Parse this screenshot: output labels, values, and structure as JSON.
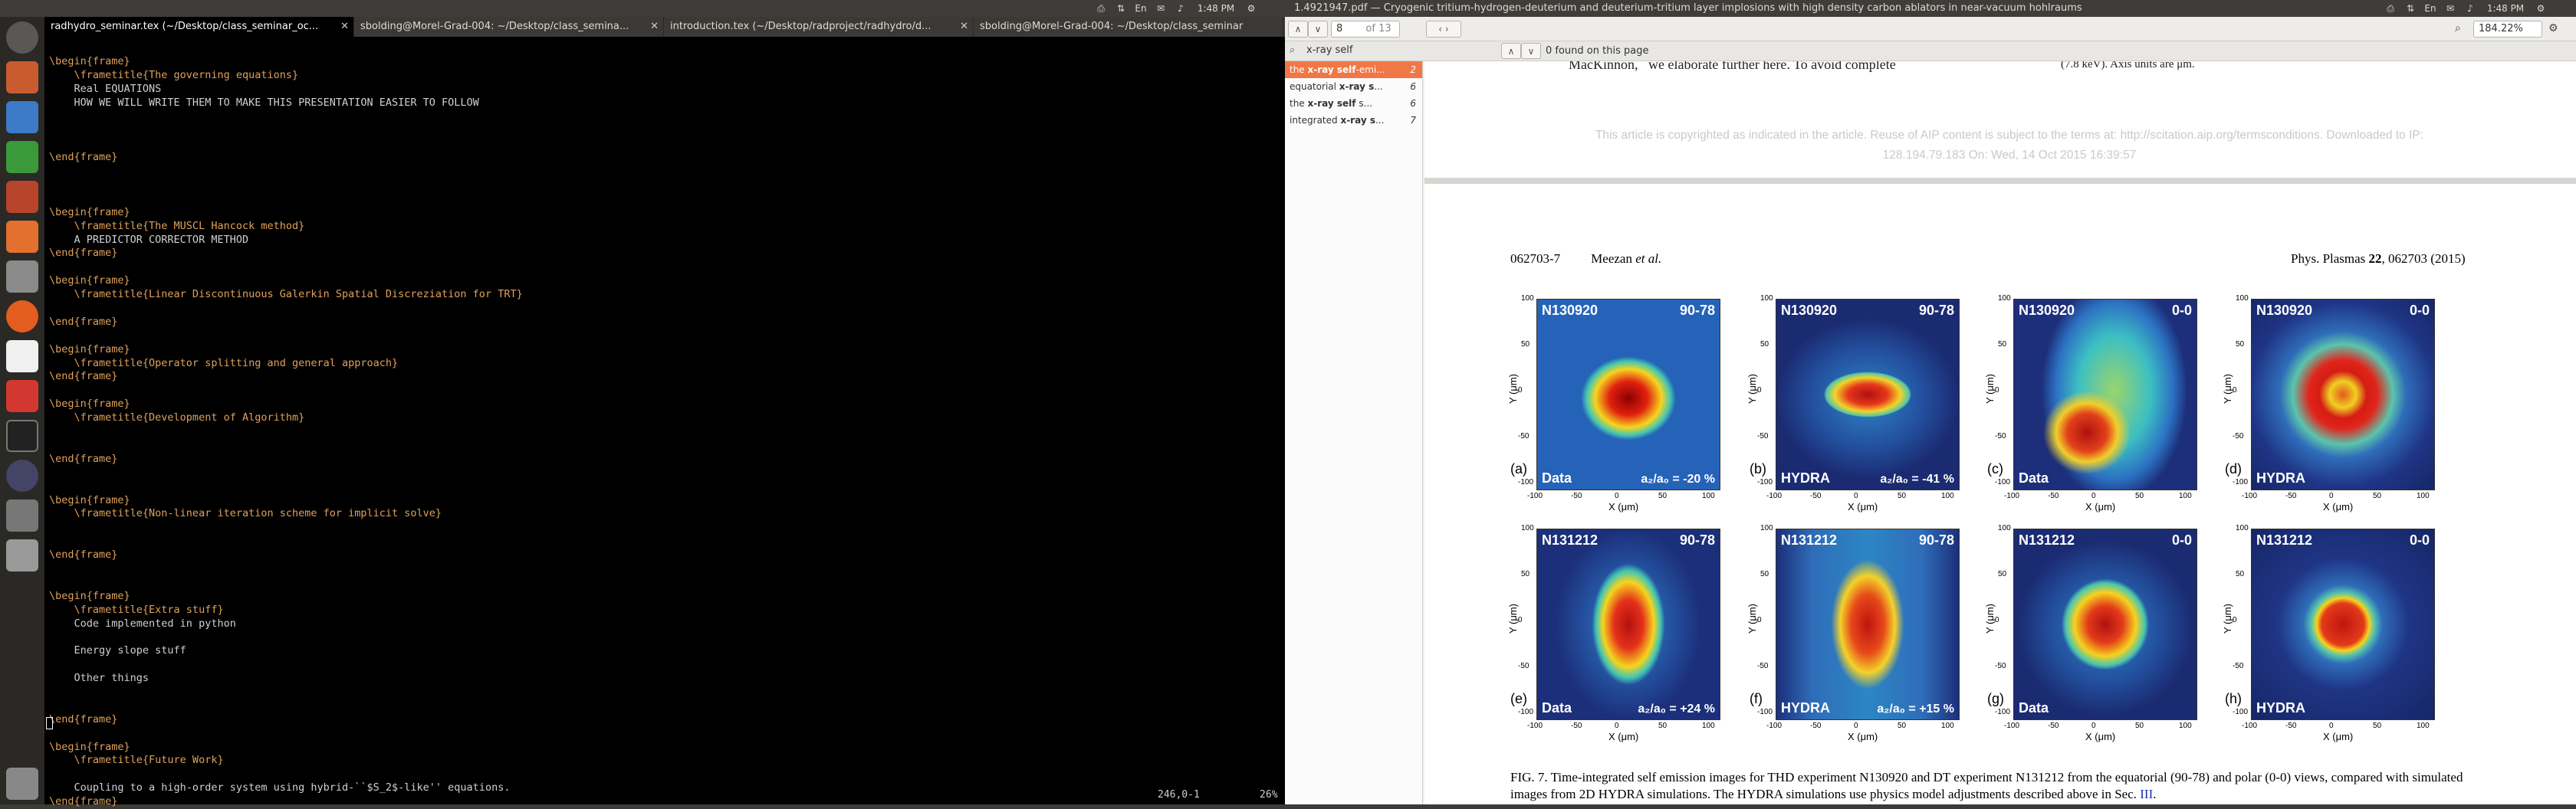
{
  "topbar": {
    "title": "1.4921947.pdf — Cryogenic tritium-hydrogen-deuterium and deuterium-tritium layer implosions with high density carbon ablators in near-vacuum hohlraums",
    "time_left": "1:48 PM",
    "time_right": "1:48 PM"
  },
  "terminal": {
    "tabs": [
      {
        "label": "radhydro_seminar.tex (~/Desktop/class_seminar_oc..."
      },
      {
        "label": "sbolding@Morel-Grad-004: ~/Desktop/class_semina..."
      },
      {
        "label": "introduction.tex (~/Desktop/radproject/radhydro/d..."
      },
      {
        "label": "sbolding@Morel-Grad-004: ~/Desktop/class_seminar"
      }
    ],
    "lines": [
      [
        "\\begin{",
        "frame",
        "}"
      ],
      [
        "    \\frametitle{The governing equations}"
      ],
      [
        "    Real EQUATIONS"
      ],
      [
        "    HOW WE WILL WRITE THEM TO MAKE THIS PRESENTATION EASIER TO FOLLOW"
      ],
      [
        ""
      ],
      [
        ""
      ],
      [
        ""
      ],
      [
        "\\end{",
        "frame",
        "}"
      ],
      [
        ""
      ],
      [
        ""
      ],
      [
        ""
      ],
      [
        "\\begin{",
        "frame",
        "}"
      ],
      [
        "    \\frametitle{The MUSCL Hancock method}"
      ],
      [
        "    A PREDICTOR CORRECTOR METHOD"
      ],
      [
        "\\end{",
        "frame",
        "}"
      ],
      [
        ""
      ],
      [
        "\\begin{",
        "frame",
        "}"
      ],
      [
        "    \\frametitle{Linear Discontinuous Galerkin Spatial Discreziation for TRT}"
      ],
      [
        ""
      ],
      [
        "\\end{",
        "frame",
        "}"
      ],
      [
        ""
      ],
      [
        "\\begin{",
        "frame",
        "}"
      ],
      [
        "    \\frametitle{Operator splitting and general approach}"
      ],
      [
        "\\end{",
        "frame",
        "}"
      ],
      [
        ""
      ],
      [
        "\\begin{",
        "frame",
        "}"
      ],
      [
        "    \\frametitle{Development of Algorithm}"
      ],
      [
        ""
      ],
      [
        ""
      ],
      [
        "\\end{",
        "frame",
        "}"
      ],
      [
        ""
      ],
      [
        ""
      ],
      [
        "\\begin{",
        "frame",
        "}"
      ],
      [
        "    \\frametitle{Non-linear iteration scheme for implicit solve}"
      ],
      [
        ""
      ],
      [
        ""
      ],
      [
        "\\end{",
        "frame",
        "}"
      ],
      [
        ""
      ],
      [
        ""
      ],
      [
        "\\begin{",
        "frame",
        "}"
      ],
      [
        "    \\frametitle{Extra stuff}"
      ],
      [
        "    Code implemented in python"
      ],
      [
        ""
      ],
      [
        "    Energy slope stuff"
      ],
      [
        ""
      ],
      [
        "    Other things"
      ],
      [
        ""
      ],
      [
        ""
      ],
      [
        "\\end{",
        "frame",
        "}"
      ],
      [
        ""
      ],
      [
        "\\begin{",
        "frame",
        "}"
      ],
      [
        "    \\frametitle{Future Work}"
      ],
      [
        ""
      ],
      [
        "    Coupling to a high-order system using hybrid-``$S_2$-like'' equations."
      ],
      [
        "\\end{",
        "frame",
        "}"
      ]
    ],
    "status": "246,0-1          26%"
  },
  "pdf": {
    "page_number": "8",
    "page_of": "of 13",
    "zoom": "184.22%",
    "search_value": "x-ray self",
    "found_text": "0 found on this page",
    "results": [
      {
        "pre": "the ",
        "match": "x-ray self",
        "post": "-emi...",
        "page": "2"
      },
      {
        "pre": "equatorial ",
        "match": "x-ray s",
        "post": "...",
        "page": "6"
      },
      {
        "pre": "the ",
        "match": "x-ray self",
        "post": " s...",
        "page": "6"
      },
      {
        "pre": "integrated ",
        "match": "x-ray s",
        "post": "...",
        "page": "7"
      }
    ],
    "prev_text": "MacKinnon,   we elaborate further here. To avoid complete",
    "prev_text2": "(7.8 keV). Axis units are μm.",
    "copyright": "This article is copyrighted as indicated in the article. Reuse of AIP content is subject to the terms at: http://scitation.aip.org/termsconditions. Downloaded to IP:",
    "copyright2": "128.194.79.183 On: Wed, 14 Oct 2015 16:39:57",
    "header_left": "062703-7",
    "header_author": "Meezan ",
    "header_etal": "et al.",
    "header_right": "Phys. Plasmas ",
    "header_vol": "22",
    "header_right2": ", 062703 (2015)",
    "panels": [
      {
        "shot": "N130920",
        "view": "90-78",
        "tag": "(a)",
        "type": "Data",
        "ratio": "a₂/a₀ = -20 %"
      },
      {
        "shot": "N130920",
        "view": "90-78",
        "tag": "(b)",
        "type": "HYDRA",
        "ratio": "a₂/a₀ = -41 %"
      },
      {
        "shot": "N130920",
        "view": "0-0",
        "tag": "(c)",
        "type": "Data",
        "ratio": ""
      },
      {
        "shot": "N130920",
        "view": "0-0",
        "tag": "(d)",
        "type": "HYDRA",
        "ratio": ""
      },
      {
        "shot": "N131212",
        "view": "90-78",
        "tag": "(e)",
        "type": "Data",
        "ratio": "a₂/a₀ = +24 %"
      },
      {
        "shot": "N131212",
        "view": "90-78",
        "tag": "(f)",
        "type": "HYDRA",
        "ratio": "a₂/a₀ = +15 %"
      },
      {
        "shot": "N131212",
        "view": "0-0",
        "tag": "(g)",
        "type": "Data",
        "ratio": ""
      },
      {
        "shot": "N131212",
        "view": "0-0",
        "tag": "(h)",
        "type": "HYDRA",
        "ratio": ""
      }
    ],
    "xlabel": "X (μm)",
    "ylabel": "Y (μm)",
    "ticks": [
      "100",
      "50",
      "0",
      "-50",
      "-100"
    ],
    "xticks": [
      "-100",
      "-50",
      "0",
      "50",
      "100"
    ],
    "caption": "FIG. 7. Time-integrated self emission images for THD experiment N130920 and DT experiment N131212 from the equatorial (90-78) and polar (0-0) views, compared with simulated images from 2D HYDRA simulations. The HYDRA simulations use physics model adjustments described above in Sec. ",
    "caption_ref": "III",
    "caption_end": "."
  },
  "colors": {
    "accent": "#f07746",
    "term_bg": "#000000",
    "keyword": "#e0a15a",
    "braced": "#5fb3ff"
  }
}
